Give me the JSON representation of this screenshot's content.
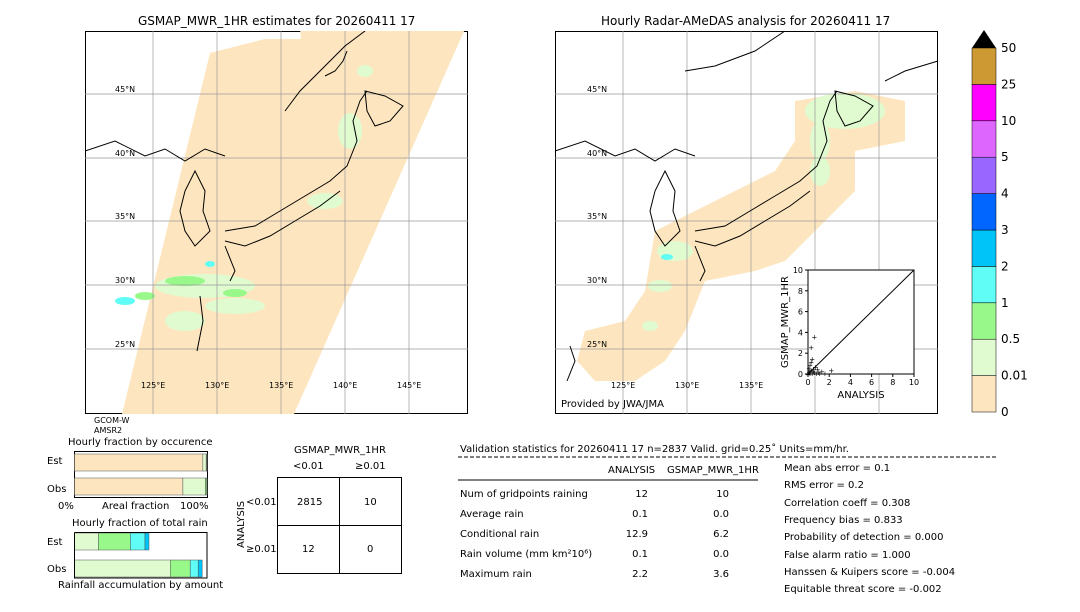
{
  "left_panel": {
    "title": "GSMAP_MWR_1HR estimates for 20260411 17",
    "lat_labels": [
      "45°N",
      "40°N",
      "35°N",
      "30°N",
      "25°N"
    ],
    "lon_labels": [
      "125°E",
      "130°E",
      "135°E",
      "140°E",
      "145°E"
    ],
    "satellite": "GCOM-W",
    "sensor": "AMSR2"
  },
  "right_panel": {
    "title": "Hourly Radar-AMeDAS analysis for 20260411 17",
    "lat_labels": [
      "45°N",
      "40°N",
      "35°N",
      "30°N",
      "25°N"
    ],
    "lon_labels": [
      "125°E",
      "130°E",
      "135°E"
    ],
    "credit": "Provided by JWA/JMA"
  },
  "colorbar": {
    "levels": [
      "0",
      "0.01",
      "0.5",
      "1",
      "2",
      "3",
      "4",
      "5",
      "10",
      "25",
      "50"
    ],
    "colors": [
      "#fde6bf",
      "#e0fbd0",
      "#98f88a",
      "#5ffdf5",
      "#00c4f8",
      "#0066ff",
      "#9966ff",
      "#dd66ff",
      "#ff00ff",
      "#cc9933"
    ],
    "over_color": "#000000"
  },
  "chart_data": [
    {
      "type": "scatter",
      "title": "",
      "xlabel": "ANALYSIS",
      "ylabel": "GSMAP_MWR_1HR",
      "xlim": [
        0,
        10
      ],
      "ylim": [
        0,
        10
      ],
      "xticks": [
        "0",
        "2",
        "4",
        "6",
        "8",
        "10"
      ],
      "yticks": [
        "0",
        "2",
        "4",
        "6",
        "8",
        "10"
      ],
      "points": [
        {
          "x": 0.0,
          "y": 0.0
        },
        {
          "x": 0.1,
          "y": 0.2
        },
        {
          "x": 0.2,
          "y": 0.1
        },
        {
          "x": 0.3,
          "y": 0.4
        },
        {
          "x": 0.4,
          "y": 0.1
        },
        {
          "x": 0.5,
          "y": 0.3
        },
        {
          "x": 0.1,
          "y": 0.6
        },
        {
          "x": 0.6,
          "y": 0.2
        },
        {
          "x": 0.2,
          "y": 0.9
        },
        {
          "x": 0.8,
          "y": 0.1
        },
        {
          "x": 0.3,
          "y": 1.2
        },
        {
          "x": 1.0,
          "y": 0.2
        },
        {
          "x": 0.4,
          "y": 1.5
        },
        {
          "x": 1.3,
          "y": 0.3
        },
        {
          "x": 0.5,
          "y": 0.5
        },
        {
          "x": 0.7,
          "y": 0.7
        },
        {
          "x": 1.6,
          "y": 0.1
        },
        {
          "x": 2.2,
          "y": 0.4
        },
        {
          "x": 0.3,
          "y": 2.6
        },
        {
          "x": 0.6,
          "y": 3.6
        },
        {
          "x": 0.2,
          "y": 0.3
        },
        {
          "x": 0.9,
          "y": 0.5
        },
        {
          "x": 1.1,
          "y": 0.1
        }
      ]
    },
    {
      "type": "bar",
      "title": "Hourly fraction by occurence",
      "categories": [
        "Est",
        "Obs"
      ],
      "axis_labels": {
        "left": "0%",
        "center": "Areal fraction",
        "right": "100%"
      },
      "series": [
        {
          "values": [
            0.965,
            0.815
          ],
          "color": "#fde6bf"
        },
        {
          "values": [
            0.025,
            0.17
          ],
          "color": "#e0fbd0"
        },
        {
          "values": [
            0.006,
            0.01
          ],
          "color": "#98f88a"
        },
        {
          "values": [
            0.004,
            0.005
          ],
          "color": "#000000"
        }
      ]
    },
    {
      "type": "bar",
      "title": "Hourly fraction of total rain",
      "categories": [
        "Est",
        "Obs"
      ],
      "footer": "Rainfall accumulation by amount",
      "series": [
        {
          "values": [
            0.0,
            0.0
          ],
          "color": "#fde6bf"
        },
        {
          "values": [
            0.18,
            0.72
          ],
          "color": "#e0fbd0"
        },
        {
          "values": [
            0.24,
            0.15
          ],
          "color": "#98f88a"
        },
        {
          "values": [
            0.11,
            0.06
          ],
          "color": "#5ffdf5"
        },
        {
          "values": [
            0.03,
            0.03
          ],
          "color": "#00c4f8"
        }
      ]
    },
    {
      "type": "table",
      "title": "GSMAP_MWR_1HR",
      "col_headers": [
        "<0.01",
        "≥0.01"
      ],
      "row_axis_label": "ANALYSIS",
      "row_headers": [
        "<0.01",
        "≥0.01"
      ],
      "cells": [
        [
          "2815",
          "10"
        ],
        [
          "12",
          "0"
        ]
      ]
    },
    {
      "type": "table",
      "title": "Validation statistics for 20260411 17  n=2837 Valid. grid=0.25˚ Units=mm/hr.",
      "col_headers": [
        "ANALYSIS",
        "GSMAP_MWR_1HR"
      ],
      "rows": [
        {
          "label": "Num of gridpoints raining",
          "analysis": "12",
          "estimate": "10"
        },
        {
          "label": "Average rain",
          "analysis": "0.1",
          "estimate": "0.0"
        },
        {
          "label": "Conditional rain",
          "analysis": "12.9",
          "estimate": "6.2"
        },
        {
          "label": "Rain volume (mm km²10⁶)",
          "analysis": "0.1",
          "estimate": "0.0"
        },
        {
          "label": "Maximum rain",
          "analysis": "2.2",
          "estimate": "3.6"
        }
      ],
      "scores": [
        "Mean abs error =    0.1",
        "RMS error =    0.2",
        "Correlation coeff =  0.308",
        "Frequency bias =  0.833",
        "Probability of detection =  0.000",
        "False alarm ratio =  1.000",
        "Hanssen & Kuipers score = -0.004",
        "Equitable threat score = -0.002"
      ]
    }
  ]
}
